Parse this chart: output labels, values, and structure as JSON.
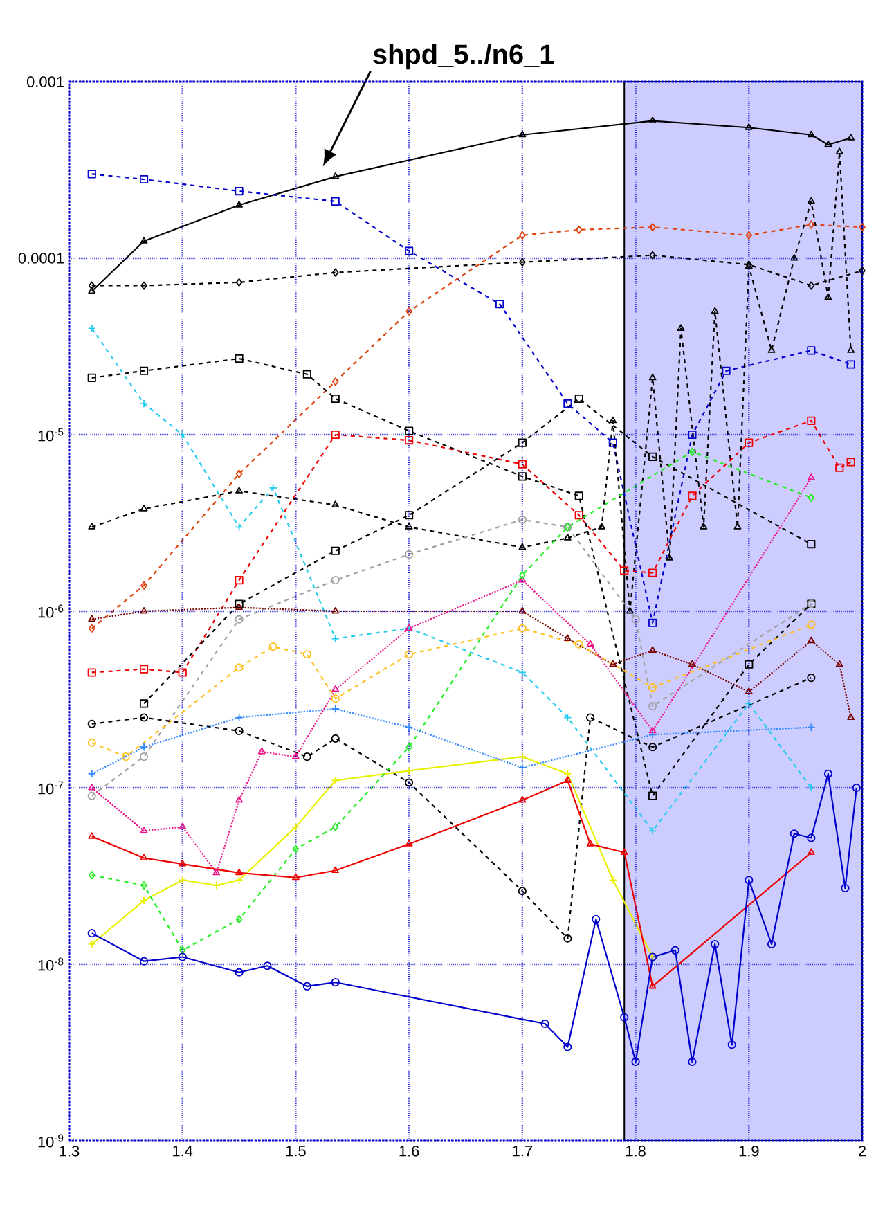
{
  "chart_data": {
    "type": "line",
    "log": "y",
    "grid": true,
    "legend": false,
    "xlim": [
      1.3,
      2.0
    ],
    "ylim": [
      1e-09,
      0.001
    ],
    "xticks": [
      1.3,
      1.4,
      1.5,
      1.6,
      1.7,
      1.8,
      1.9,
      2
    ],
    "yticks": [
      {
        "value": 1e-09,
        "label": "10$^{-9}$"
      },
      {
        "value": 1e-08,
        "label": "10$^{-8}$"
      },
      {
        "value": 1e-07,
        "label": "10$^{-7}$"
      },
      {
        "value": 1e-06,
        "label": "10$^{-6}$"
      },
      {
        "value": 1e-05,
        "label": "10$^{-5}$"
      },
      0.0001,
      0.001
    ],
    "annotations": [
      "shpd_5../n6_1"
    ],
    "bands": [
      {
        "axis": "x",
        "from": 1.79,
        "to": 2.0,
        "color": "#ccccff"
      }
    ],
    "series": [
      {
        "color": "#000000",
        "line_style": "solid",
        "marker": "triangle",
        "x": [
          1.32,
          1.366,
          1.45,
          1.535,
          1.7,
          1.815,
          1.9,
          1.955,
          1.97,
          1.99
        ],
        "values": [
          6.5e-05,
          0.000125,
          0.0002,
          0.00029,
          0.0005,
          0.0006,
          0.00055,
          0.0005,
          0.00044,
          0.00048
        ]
      },
      {
        "color": "#000000",
        "line_style": "dashed",
        "marker": "diamond",
        "x": [
          1.32,
          1.366,
          1.45,
          1.535,
          1.7,
          1.815,
          1.9,
          1.955,
          2.0
        ],
        "values": [
          7e-05,
          7e-05,
          7.3e-05,
          8.3e-05,
          9.5e-05,
          0.000104,
          9.2e-05,
          7e-05,
          8.5e-05
        ]
      },
      {
        "color": "#0000cc",
        "line_style": "dashed",
        "marker": "square",
        "x": [
          1.32,
          1.366,
          1.45,
          1.535,
          1.6,
          1.68,
          1.74,
          1.78,
          1.815,
          1.85,
          1.88,
          1.955,
          1.99
        ],
        "values": [
          0.0003,
          0.00028,
          0.00024,
          0.00021,
          0.00011,
          5.5e-05,
          1.5e-05,
          9e-06,
          8.6e-07,
          1e-05,
          2.3e-05,
          3e-05,
          2.5e-05
        ]
      },
      {
        "color": "#e0400a",
        "line_style": "dashed",
        "marker": "diamond",
        "x": [
          1.32,
          1.366,
          1.45,
          1.535,
          1.6,
          1.7,
          1.75,
          1.815,
          1.9,
          1.955,
          2.0
        ],
        "values": [
          8e-07,
          1.4e-06,
          6e-06,
          2e-05,
          5e-05,
          0.000135,
          0.000145,
          0.00015,
          0.000135,
          0.000155,
          0.00015
        ]
      },
      {
        "color": "#000000",
        "line_style": "dashed",
        "marker": "square",
        "x": [
          1.32,
          1.366,
          1.45,
          1.51,
          1.535,
          1.6,
          1.7,
          1.75,
          1.815,
          1.9,
          1.955
        ],
        "values": [
          2.1e-05,
          2.3e-05,
          2.7e-05,
          2.2e-05,
          1.6e-05,
          1.05e-05,
          5.8e-06,
          4.5e-06,
          9e-08,
          5e-07,
          1.1e-06
        ]
      },
      {
        "color": "#22ccee",
        "line_style": "dashed",
        "marker": "cross",
        "x": [
          1.32,
          1.366,
          1.4,
          1.45,
          1.48,
          1.535,
          1.6,
          1.7,
          1.74,
          1.815,
          1.9,
          1.955
        ],
        "values": [
          4e-05,
          1.5e-05,
          1e-05,
          3e-06,
          5e-06,
          7e-07,
          8e-07,
          4.5e-07,
          2.5e-07,
          5.7e-08,
          3e-07,
          1e-07
        ]
      },
      {
        "color": "#000000",
        "line_style": "dashed",
        "marker": "triangle",
        "x": [
          1.32,
          1.366,
          1.45,
          1.535,
          1.6,
          1.7,
          1.74,
          1.77,
          1.78,
          1.795,
          1.815,
          1.83,
          1.84,
          1.86,
          1.87,
          1.89,
          1.9,
          1.92,
          1.94,
          1.955,
          1.97,
          1.98,
          1.99
        ],
        "values": [
          3e-06,
          3.8e-06,
          4.8e-06,
          4e-06,
          3e-06,
          2.3e-06,
          2.6e-06,
          3e-06,
          1.2e-05,
          1e-06,
          2.1e-05,
          2e-06,
          4e-05,
          3e-06,
          5e-05,
          3e-06,
          9e-05,
          3e-05,
          0.0001,
          0.00021,
          6e-05,
          0.0004,
          3e-05
        ]
      },
      {
        "color": "#ee0000",
        "line_style": "dashed",
        "marker": "square",
        "x": [
          1.32,
          1.366,
          1.4,
          1.45,
          1.535,
          1.6,
          1.7,
          1.75,
          1.79,
          1.815,
          1.85,
          1.9,
          1.955,
          1.98,
          1.99
        ],
        "values": [
          4.5e-07,
          4.7e-07,
          4.5e-07,
          1.5e-06,
          1e-05,
          9.3e-06,
          6.8e-06,
          3.5e-06,
          1.7e-06,
          1.65e-06,
          4.5e-06,
          9e-06,
          1.2e-05,
          6.5e-06,
          7e-06
        ]
      },
      {
        "color": "#000000",
        "line_style": "dashed",
        "marker": "square",
        "x": [
          1.366,
          1.45,
          1.535,
          1.6,
          1.7,
          1.75,
          1.815,
          1.955
        ],
        "values": [
          3e-07,
          1.1e-06,
          2.2e-06,
          3.5e-06,
          9e-06,
          1.6e-05,
          7.5e-06,
          2.4e-06
        ]
      },
      {
        "color": "#a0a0a0",
        "line_style": "dashed",
        "marker": "circle",
        "x": [
          1.32,
          1.366,
          1.45,
          1.535,
          1.6,
          1.7,
          1.74,
          1.8,
          1.815,
          1.955
        ],
        "values": [
          9e-08,
          1.5e-07,
          9e-07,
          1.5e-06,
          2.1e-06,
          3.3e-06,
          3e-06,
          9e-07,
          2.9e-07,
          1.1e-06
        ]
      },
      {
        "color": "#7a0000",
        "line_style": "dotted",
        "marker": "triangle",
        "x": [
          1.32,
          1.366,
          1.45,
          1.535,
          1.7,
          1.74,
          1.78,
          1.815,
          1.85,
          1.9,
          1.955,
          1.98,
          1.99
        ],
        "values": [
          9e-07,
          1e-06,
          1.05e-06,
          1e-06,
          1e-06,
          7e-07,
          5e-07,
          6e-07,
          5e-07,
          3.5e-07,
          6.8e-07,
          5e-07,
          2.5e-07
        ]
      },
      {
        "color": "#ffc020",
        "line_style": "dashed",
        "marker": "circle",
        "x": [
          1.32,
          1.35,
          1.45,
          1.48,
          1.51,
          1.535,
          1.6,
          1.7,
          1.75,
          1.815,
          1.955
        ],
        "values": [
          1.8e-07,
          1.5e-07,
          4.8e-07,
          6.3e-07,
          5.7e-07,
          3.2e-07,
          5.7e-07,
          8e-07,
          6.5e-07,
          3.7e-07,
          8.4e-07
        ]
      },
      {
        "color": "#ee1188",
        "line_style": "dotted",
        "marker": "triangle",
        "x": [
          1.32,
          1.366,
          1.4,
          1.43,
          1.45,
          1.47,
          1.5,
          1.535,
          1.6,
          1.7,
          1.76,
          1.815,
          1.955
        ],
        "values": [
          1e-07,
          5.7e-08,
          6e-08,
          3.3e-08,
          8.5e-08,
          1.6e-07,
          1.5e-07,
          3.6e-07,
          8e-07,
          1.5e-06,
          6.5e-07,
          2.1e-07,
          5.7e-06
        ]
      },
      {
        "color": "#000000",
        "line_style": "dashed",
        "marker": "circle",
        "x": [
          1.32,
          1.366,
          1.45,
          1.51,
          1.535,
          1.6,
          1.7,
          1.74,
          1.76,
          1.815,
          1.955
        ],
        "values": [
          2.3e-07,
          2.5e-07,
          2.1e-07,
          1.5e-07,
          1.9e-07,
          1.07e-07,
          2.6e-08,
          1.4e-08,
          2.5e-07,
          1.7e-07,
          4.2e-07
        ]
      },
      {
        "color": "#e8f000",
        "line_style": "solid",
        "marker": "cross",
        "x": [
          1.32,
          1.366,
          1.4,
          1.43,
          1.45,
          1.5,
          1.535,
          1.6,
          1.7,
          1.74,
          1.78,
          1.815
        ],
        "values": [
          1.3e-08,
          2.3e-08,
          3e-08,
          2.8e-08,
          3e-08,
          6e-08,
          1.1e-07,
          1.25e-07,
          1.5e-07,
          1.2e-07,
          3e-08,
          1.1e-08
        ]
      },
      {
        "color": "#22ee22",
        "line_style": "dashed",
        "marker": "diamond",
        "x": [
          1.32,
          1.366,
          1.4,
          1.45,
          1.5,
          1.535,
          1.6,
          1.7,
          1.74,
          1.85,
          1.955
        ],
        "values": [
          3.2e-08,
          2.8e-08,
          1.2e-08,
          1.8e-08,
          4.5e-08,
          6e-08,
          1.7e-07,
          1.6e-06,
          3e-06,
          8e-06,
          4.4e-06
        ]
      },
      {
        "color": "#ee0000",
        "line_style": "solid",
        "marker": "triangle",
        "x": [
          1.32,
          1.366,
          1.4,
          1.45,
          1.5,
          1.535,
          1.6,
          1.7,
          1.74,
          1.76,
          1.79,
          1.815,
          1.955
        ],
        "values": [
          5.3e-08,
          4e-08,
          3.7e-08,
          3.3e-08,
          3.1e-08,
          3.4e-08,
          4.8e-08,
          8.5e-08,
          1.1e-07,
          4.8e-08,
          4.3e-08,
          7.5e-09,
          4.3e-08
        ]
      },
      {
        "color": "#0000cc",
        "line_style": "solid",
        "marker": "circle",
        "x": [
          1.32,
          1.366,
          1.4,
          1.45,
          1.475,
          1.51,
          1.535,
          1.72,
          1.74,
          1.765,
          1.79,
          1.8,
          1.815,
          1.835,
          1.85,
          1.87,
          1.885,
          1.9,
          1.92,
          1.94,
          1.955,
          1.97,
          1.985,
          1.995
        ],
        "values": [
          1.5e-08,
          1.04e-08,
          1.1e-08,
          9e-09,
          9.8e-09,
          7.5e-09,
          7.9e-09,
          4.6e-09,
          3.4e-09,
          1.8e-08,
          5e-09,
          2.8e-09,
          1.1e-08,
          1.2e-08,
          2.8e-09,
          1.3e-08,
          3.5e-09,
          3e-08,
          1.3e-08,
          5.5e-08,
          5.2e-08,
          1.2e-07,
          2.7e-08,
          1e-07
        ]
      },
      {
        "color": "#3388ff",
        "line_style": "dotted",
        "marker": "cross",
        "x": [
          1.32,
          1.366,
          1.45,
          1.535,
          1.6,
          1.7,
          1.815,
          1.955
        ],
        "values": [
          1.2e-07,
          1.7e-07,
          2.5e-07,
          2.8e-07,
          2.2e-07,
          1.3e-07,
          2e-07,
          2.2e-07
        ]
      }
    ]
  }
}
